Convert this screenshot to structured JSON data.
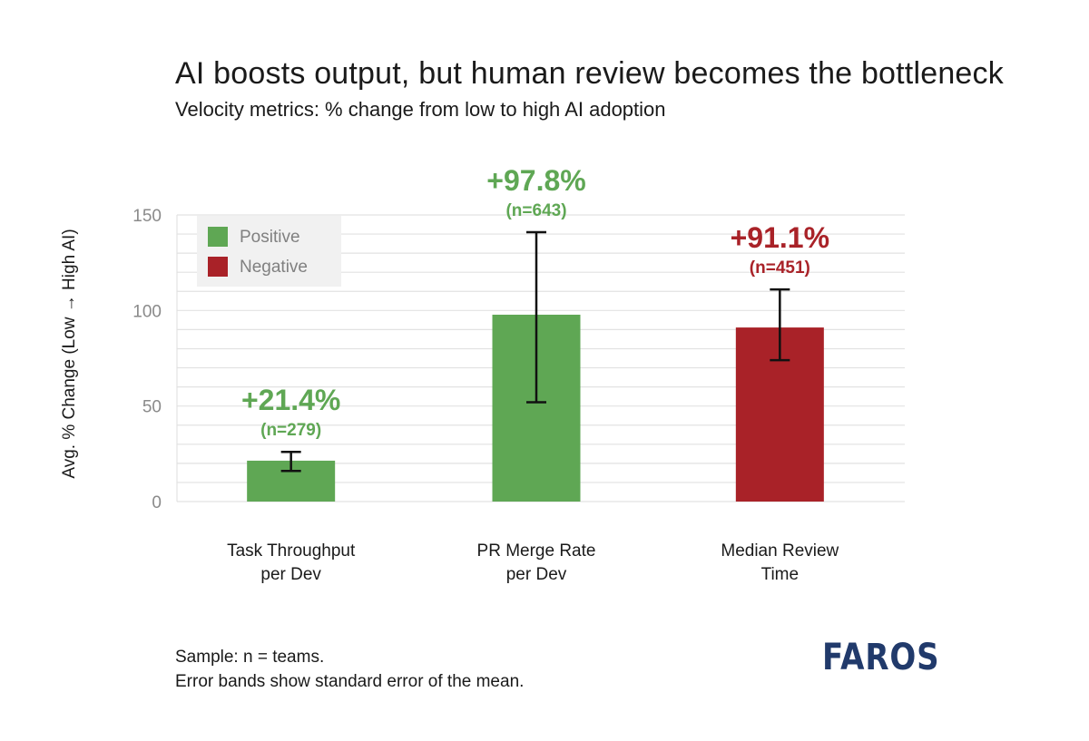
{
  "title": "AI boosts output, but human review becomes the bottleneck",
  "subtitle": "Velocity metrics: % change from low to high AI adoption",
  "footnote": {
    "line1": "Sample: n = teams.",
    "line2": "Error bands show standard error of the mean."
  },
  "logo": {
    "prefix": "F",
    "accent_letter": "A",
    "suffix": "ROS"
  },
  "colors": {
    "positive": "#5fa754",
    "negative": "#a92228",
    "positive_text": "#5fa754",
    "negative_text": "#a92228",
    "grid": "#e2e2e2",
    "axis_text": "#8a8a8a"
  },
  "chart_data": {
    "type": "bar",
    "title": "AI boosts output, but human review becomes the bottleneck",
    "subtitle": "Velocity metrics: % change from low to high AI adoption",
    "ylabel": "Avg. % Change (Low → High AI)",
    "xlabel": "",
    "ylim": [
      0,
      150
    ],
    "yticks": [
      0,
      50,
      100,
      150
    ],
    "grid": true,
    "legend": {
      "position": "top-left",
      "entries": [
        {
          "label": "Positive",
          "key": "positive"
        },
        {
          "label": "Negative",
          "key": "negative"
        }
      ]
    },
    "categories": [
      "Task Throughput\nper Dev",
      "PR Merge Rate\nper Dev",
      "Median Review\nTime"
    ],
    "values": [
      21.4,
      97.8,
      91.1
    ],
    "error_low": [
      16,
      52,
      74
    ],
    "error_high": [
      26,
      141,
      111
    ],
    "sentiment": [
      "positive",
      "positive",
      "negative"
    ],
    "value_labels": [
      "+21.4%",
      "+97.8%",
      "+91.1%"
    ],
    "n_labels": [
      "(n=279)",
      "(n=643)",
      "(n=451)"
    ]
  }
}
